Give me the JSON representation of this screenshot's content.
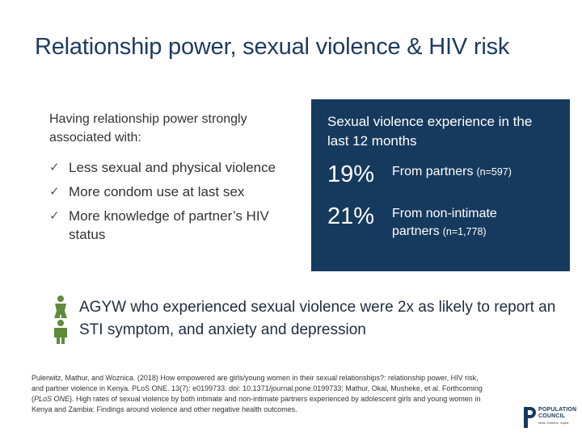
{
  "slide": {
    "title": "Relationship power, sexual violence & HIV risk"
  },
  "left_panel": {
    "intro": "Having relationship power strongly associated with:",
    "items": [
      {
        "label": "Less sexual and physical violence"
      },
      {
        "label": "More condom use at last sex"
      },
      {
        "label": "More knowledge of partner’s HIV status"
      }
    ],
    "check_glyph": "✓"
  },
  "stats_box": {
    "heading": "Sexual violence experience in the last 12 months",
    "stats": [
      {
        "value": "19%",
        "label": "From partners",
        "n": "(n=597)"
      },
      {
        "value": "21%",
        "label": "From non-intimate partners",
        "n": "(n=1,778)"
      }
    ],
    "background_color": "#163a5e"
  },
  "key_finding": {
    "icon": "female-male-icon",
    "text": "AGYW who experienced sexual violence were 2x as likely to report an STI symptom, and anxiety and depression",
    "icon_color": "#5f8b3a"
  },
  "reference": {
    "part1": "Pulerwitz, Mathur, and Woznica. (2018) How empowered are girls/young women in their sexual relationships?: relationship power, HIV risk, and partner violence in Kenya. PLoS ONE. 13(7): e0199733. doi: 10.1371/journal.pone.0199733; Mathur, Okal, Musheke, et al. Forthcoming (",
    "journal": "PLoS ONE",
    "part2": "). High rates of sexual violence by both intimate and non-intimate partners experienced by adolescent girls and young women in Kenya and Zambia: Findings around violence and other negative health outcomes."
  },
  "logo": {
    "line1": "POPULATION",
    "line2": "COUNCIL",
    "tagline": "Ideas. Evidence. Impact."
  }
}
